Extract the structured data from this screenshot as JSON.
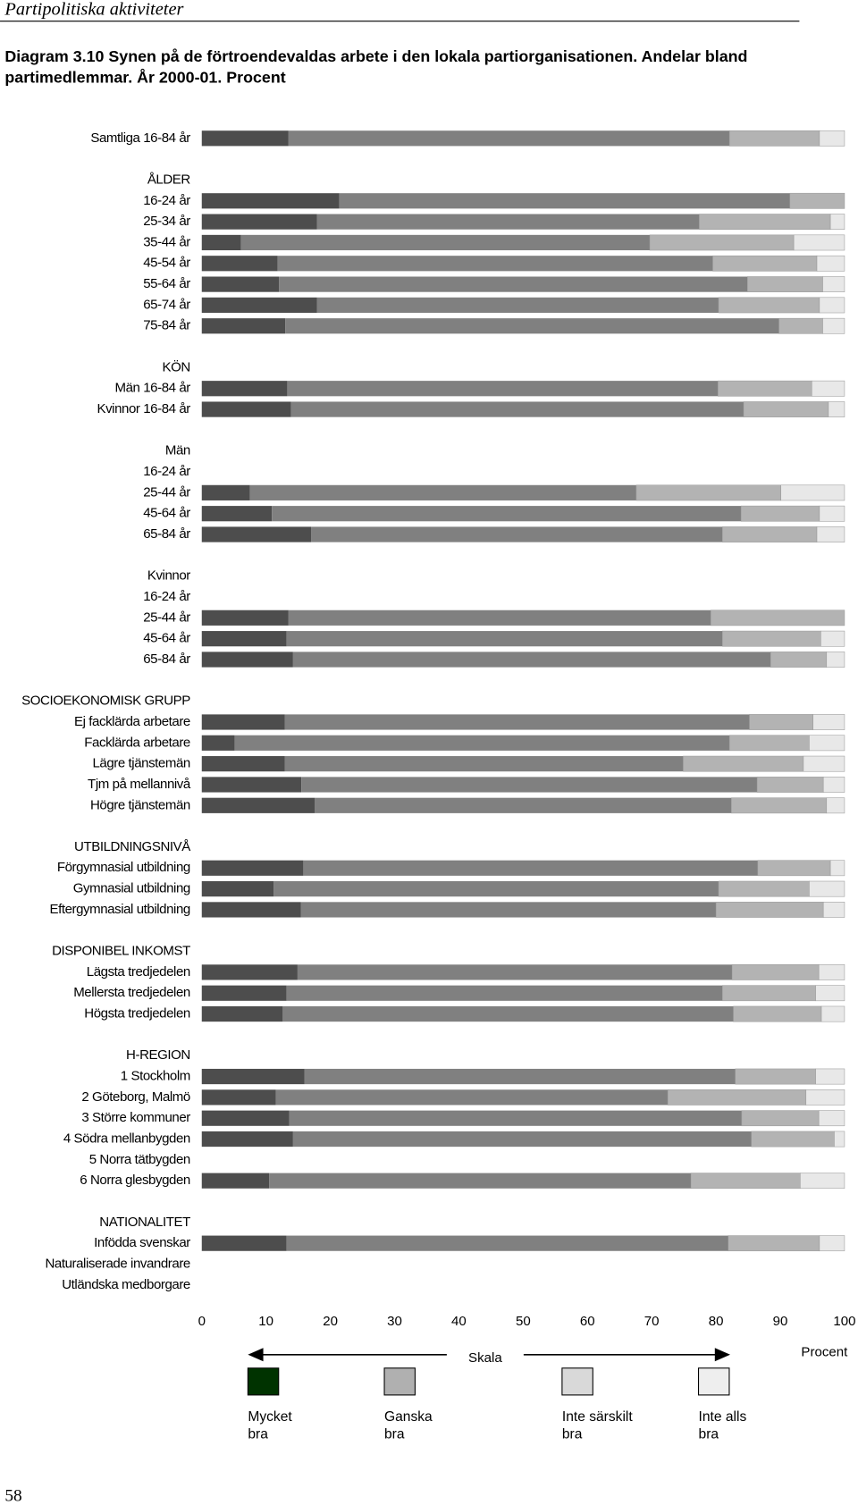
{
  "header": "Partipolitiska aktiviteter",
  "page_number": "58",
  "chart_data": {
    "type": "bar",
    "orientation": "horizontal",
    "stacked": true,
    "title": "Diagram 3.10  Synen på de förtroendevaldas arbete i den lokala partiorganisationen. Andelar bland partimedlemmar. År 2000-01. Procent",
    "x_label": "Procent",
    "scale_label": "Skala",
    "categories": [
      "Samtliga 16-84 år",
      null,
      "ÅLDER",
      "16-24 år",
      "25-34 år",
      "35-44 år",
      "45-54 år",
      "55-64 år",
      "65-74 år",
      "75-84 år",
      null,
      "KÖN",
      "Män 16-84 år",
      "Kvinnor 16-84 år",
      null,
      "Män",
      "16-24 år",
      "25-44 år",
      "45-64 år",
      "65-84 år",
      null,
      "Kvinnor",
      "16-24 år",
      "25-44 år",
      "45-64 år",
      "65-84 år",
      null,
      "SOCIOEKONOMISK GRUPP",
      "Ej facklärda arbetare",
      "Facklärda arbetare",
      "Lägre tjänstemän",
      "Tjm på mellannivå",
      "Högre tjänstemän",
      null,
      "UTBILDNINGSNIVÅ",
      "Förgymnasial utbildning",
      "Gymnasial utbildning",
      "Eftergymnasial utbildning",
      null,
      "DISPONIBEL INKOMST",
      "Lägsta tredjedelen",
      "Mellersta tredjedelen",
      "Högsta tredjedelen",
      null,
      "H-REGION",
      "1 Stockholm",
      "2 Göteborg, Malmö",
      "3 Större kommuner",
      "4 Södra mellanbygden",
      "5 Norra tätbygden",
      "6 Norra glesbygden",
      null,
      "NATIONALITET",
      "Infödda svenskar",
      "Naturaliserade invandrare",
      "Utländska medborgare"
    ],
    "series": [
      {
        "name": "Mycket bra",
        "color": "#4d4d4d",
        "legend_color": "#003300",
        "values": [
          13.5,
          null,
          null,
          21.4,
          17.9,
          6.1,
          11.8,
          12.0,
          17.9,
          13.0,
          null,
          null,
          13.3,
          13.9,
          null,
          null,
          null,
          7.5,
          10.9,
          17.0,
          null,
          null,
          null,
          13.5,
          13.2,
          14.2,
          null,
          null,
          12.9,
          5.1,
          12.9,
          15.5,
          17.6,
          null,
          null,
          15.8,
          11.2,
          15.4,
          null,
          null,
          14.9,
          13.2,
          12.6,
          null,
          null,
          16.0,
          11.5,
          13.6,
          14.2,
          null,
          10.5,
          null,
          null,
          13.2,
          null,
          null
        ]
      },
      {
        "name": "Ganska bra",
        "color": "#808080",
        "legend_color": "#b0b0b0",
        "values": [
          68.6,
          null,
          null,
          70.1,
          59.5,
          63.6,
          67.7,
          72.9,
          62.5,
          76.8,
          null,
          null,
          67.0,
          70.4,
          null,
          null,
          null,
          60.1,
          73.0,
          64.0,
          null,
          null,
          null,
          65.7,
          67.8,
          74.3,
          null,
          null,
          72.3,
          77.0,
          62.0,
          70.9,
          64.8,
          null,
          null,
          70.7,
          69.2,
          64.6,
          null,
          null,
          67.6,
          67.8,
          70.1,
          null,
          null,
          67.0,
          61.0,
          70.4,
          71.3,
          null,
          65.6,
          null,
          null,
          68.7,
          null,
          null
        ]
      },
      {
        "name": "Inte särskilt bra",
        "color": "#b3b3b3",
        "legend_color": "#d9d9d9",
        "values": [
          14.0,
          null,
          null,
          8.5,
          20.4,
          22.4,
          16.2,
          11.7,
          15.7,
          6.8,
          null,
          null,
          14.6,
          13.2,
          null,
          null,
          null,
          22.5,
          12.2,
          14.7,
          null,
          null,
          null,
          20.8,
          15.3,
          8.7,
          null,
          null,
          9.9,
          12.4,
          18.7,
          10.3,
          14.8,
          null,
          null,
          11.3,
          14.1,
          16.7,
          null,
          null,
          13.5,
          14.5,
          13.7,
          null,
          null,
          12.5,
          21.5,
          12.0,
          12.9,
          null,
          17.0,
          null,
          null,
          14.2,
          null,
          null
        ]
      },
      {
        "name": "Inte alls bra",
        "color": "#e8e8e8",
        "legend_color": "#eeeeee",
        "values": [
          3.9,
          null,
          null,
          0,
          2.2,
          7.9,
          4.3,
          3.4,
          3.9,
          3.4,
          null,
          null,
          5.1,
          2.5,
          null,
          null,
          null,
          9.9,
          3.9,
          4.3,
          null,
          null,
          null,
          0,
          3.7,
          2.8,
          null,
          null,
          4.9,
          5.5,
          6.4,
          3.3,
          2.8,
          null,
          null,
          2.2,
          5.5,
          3.3,
          null,
          null,
          4.0,
          4.5,
          3.6,
          null,
          null,
          4.5,
          6.0,
          4.0,
          1.6,
          null,
          6.9,
          null,
          null,
          3.9,
          null,
          null
        ]
      }
    ],
    "xlim": [
      0,
      100
    ],
    "xticks": [
      0,
      10,
      20,
      30,
      40,
      50,
      60,
      70,
      80,
      90,
      100
    ]
  }
}
